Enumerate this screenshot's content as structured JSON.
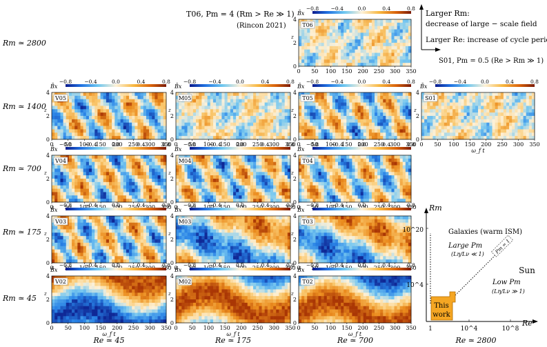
{
  "colorbar": {
    "label": "B̄x",
    "ticks": [
      "−0.8",
      "−0.4",
      "0.0",
      "0.4",
      "0.8"
    ]
  },
  "axes": {
    "x_ticks": [
      "0",
      "50",
      "100",
      "150",
      "200",
      "250",
      "300",
      "350"
    ],
    "y_ticks": [
      "0",
      "2",
      "4"
    ],
    "xlabel": "ω_f t",
    "ylabel": "z"
  },
  "header": {
    "t06_title": "T06, Pm = 4 (Rm > Re ≫ 1)",
    "t06_citation": "(Rincon 2021)",
    "s01_title": "S01, Pm = 0.5 (Re > Rm ≫ 1)"
  },
  "legend_arrows": {
    "rm_line1": "Larger Rm:",
    "rm_line2": "decrease of large − scale field",
    "re_line": "Larger Re:  increase of cycle periods"
  },
  "row_labels": [
    "Rm ≃ 2800",
    "Rm ≃ 1400",
    "Rm ≃ 700",
    "Rm ≃ 175",
    "Rm ≃ 45"
  ],
  "col_labels": [
    "Re ≃ 45",
    "Re ≃ 175",
    "Re ≃ 700",
    "Re ≃ 2800"
  ],
  "panels": [
    {
      "id": "T06",
      "rm": 2800,
      "re": 700,
      "pattern": "weak"
    },
    {
      "id": "V05",
      "rm": 1400,
      "re": 45,
      "pattern": "waves"
    },
    {
      "id": "M05",
      "rm": 1400,
      "re": 175,
      "pattern": "weak"
    },
    {
      "id": "T05",
      "rm": 1400,
      "re": 700,
      "pattern": "waves"
    },
    {
      "id": "S01",
      "rm": 1400,
      "re": 2800,
      "pattern": "weak"
    },
    {
      "id": "V04",
      "rm": 700,
      "re": 45,
      "pattern": "waves"
    },
    {
      "id": "M04",
      "rm": 700,
      "re": 175,
      "pattern": "waves"
    },
    {
      "id": "T04",
      "rm": 700,
      "re": 700,
      "pattern": "waves"
    },
    {
      "id": "V03",
      "rm": 175,
      "re": 45,
      "pattern": "waves"
    },
    {
      "id": "M03",
      "rm": 175,
      "re": 175,
      "pattern": "bands"
    },
    {
      "id": "T03",
      "rm": 175,
      "re": 700,
      "pattern": "bands"
    },
    {
      "id": "V02",
      "rm": 45,
      "re": 45,
      "pattern": "strong"
    },
    {
      "id": "M02",
      "rm": 45,
      "re": 175,
      "pattern": "strong"
    },
    {
      "id": "T02",
      "rm": 45,
      "re": 700,
      "pattern": "strong"
    }
  ],
  "chart_data": {
    "type": "heatmap",
    "description_of_axes": "Space-time diagrams of mean field B̄x as function of ω_f t (0–350) and z (0–4)",
    "colorbar_range": [
      -0.8,
      0.8
    ],
    "xlim": [
      0,
      350
    ],
    "ylim": [
      0,
      4
    ],
    "grid_rows_Rm": [
      2800,
      1400,
      700,
      175,
      45
    ],
    "grid_cols_Re": [
      45,
      175,
      700,
      2800
    ],
    "simulations": [
      "T06",
      "V05",
      "M05",
      "T05",
      "S01",
      "V04",
      "M04",
      "T04",
      "V03",
      "M03",
      "T03",
      "V02",
      "M02",
      "T02"
    ]
  },
  "param_diagram": {
    "ylabel": "Rm",
    "xlabel": "Re",
    "y_ticks": [
      "10^4",
      "10^20"
    ],
    "x_ticks": [
      "1",
      "10^4",
      "10^8"
    ],
    "galaxies": "Galaxies (warm ISM)",
    "large_pm": "Large Pm",
    "large_pm_sub": "(Lη/Lν ≪ 1)",
    "low_pm": "Low Pm",
    "low_pm_sub": "(Lη/Lν ≫ 1)",
    "pm1": "Pm = 1",
    "sun": "Sun",
    "this_work_1": "This",
    "this_work_2": "work",
    "colors": {
      "this_work": "#f5a623",
      "this_work_border": "#b36b00"
    }
  },
  "colors": {
    "neg": "#1f6fe0",
    "pos": "#d9620a",
    "zero": "#fde8c8"
  }
}
